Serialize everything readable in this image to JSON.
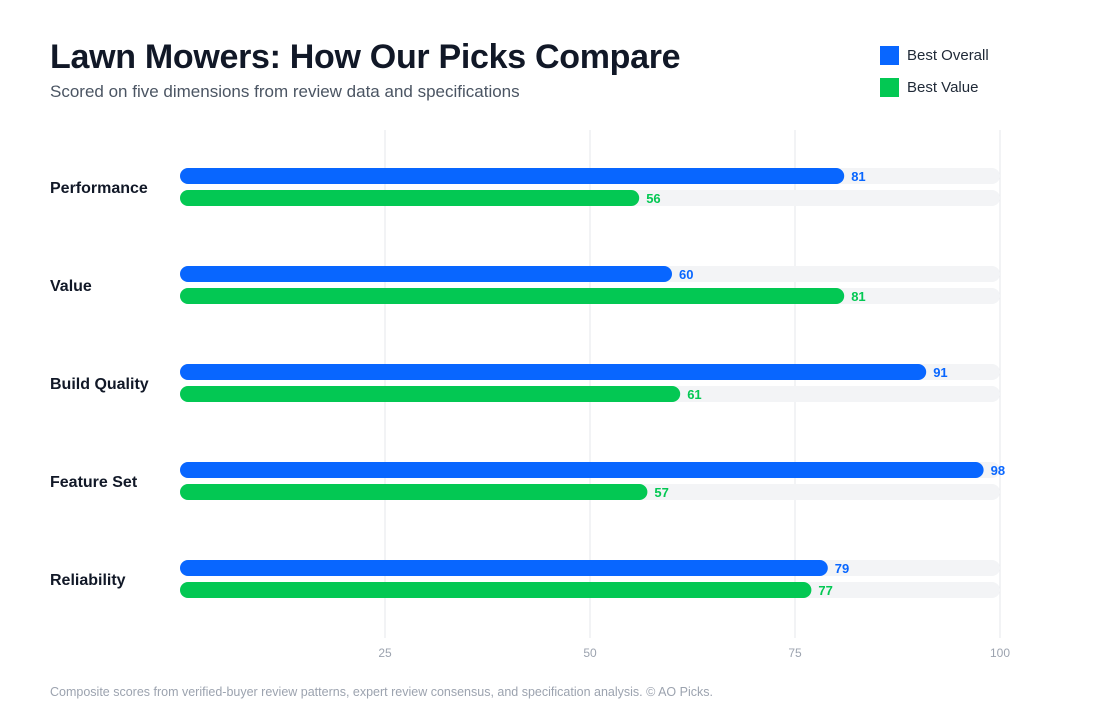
{
  "header": {
    "title": "Lawn Mowers: How Our Picks Compare",
    "subtitle": "Scored on five dimensions from review data and specifications"
  },
  "legend": [
    {
      "label": "Best Overall",
      "color": "#0866ff"
    },
    {
      "label": "Best Value",
      "color": "#03c853"
    }
  ],
  "chart_data": {
    "type": "bar",
    "orientation": "horizontal",
    "categories": [
      "Performance",
      "Value",
      "Build Quality",
      "Feature Set",
      "Reliability"
    ],
    "series": [
      {
        "name": "Best Overall",
        "color": "#0866ff",
        "values": [
          81,
          60,
          91,
          98,
          79
        ]
      },
      {
        "name": "Best Value",
        "color": "#03c853",
        "values": [
          56,
          81,
          61,
          57,
          77
        ]
      }
    ],
    "xlim": [
      0,
      100
    ],
    "xticks": [
      25,
      50,
      75,
      100
    ],
    "grid": true,
    "legend_position": "top-right",
    "track_color": "#f3f4f6"
  },
  "footnote": "Composite scores from verified-buyer review patterns, expert review consensus, and specification analysis. © AO Picks."
}
